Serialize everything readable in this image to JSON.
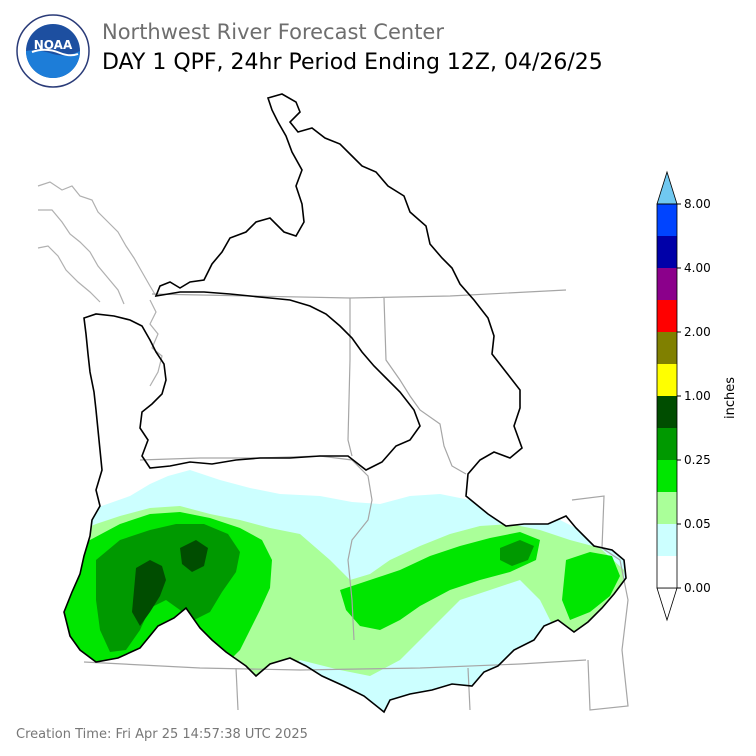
{
  "header": {
    "organization": "Northwest River Forecast Center",
    "product_title": "DAY 1 QPF, 24hr Period Ending 12Z, 04/26/25"
  },
  "logo": {
    "text": "NOAA",
    "ring_text": "NATIONAL OCEANIC AND ATMOSPHERIC ADMINISTRATION · U.S. DEPARTMENT OF COMMERCE"
  },
  "legend": {
    "unit_label": "inches",
    "tick_labels": [
      "0.00",
      "0.05",
      "0.25",
      "1.00",
      "2.00",
      "4.00",
      "8.00"
    ],
    "bins": [
      {
        "range": "0.00-0.01",
        "color": "#ffffff"
      },
      {
        "range": "0.01-0.05",
        "color": "#ccffff"
      },
      {
        "range": "0.05-0.10",
        "color": "#aaff99"
      },
      {
        "range": "0.10-0.25",
        "color": "#00e600"
      },
      {
        "range": "0.25-0.50",
        "color": "#009900"
      },
      {
        "range": "0.50-1.00",
        "color": "#004d00"
      },
      {
        "range": "1.00-1.50",
        "color": "#ffff00"
      },
      {
        "range": "1.50-2.00",
        "color": "#808000"
      },
      {
        "range": "2.00-3.00",
        "color": "#ff0000"
      },
      {
        "range": "3.00-4.00",
        "color": "#8b008b"
      },
      {
        "range": "4.00-6.00",
        "color": "#0000a8"
      },
      {
        "range": "6.00-8.00",
        "color": "#0044ff"
      },
      {
        "range": ">8.00",
        "color": "#70c8f0"
      }
    ]
  },
  "map_colors": {
    "basin_outline": "#000000",
    "boundaries": "#a6a6a6",
    "coast": "#b0b0b0"
  },
  "footer": {
    "creation_time": "Creation Time: Fri Apr 25 14:57:38 UTC 2025"
  }
}
